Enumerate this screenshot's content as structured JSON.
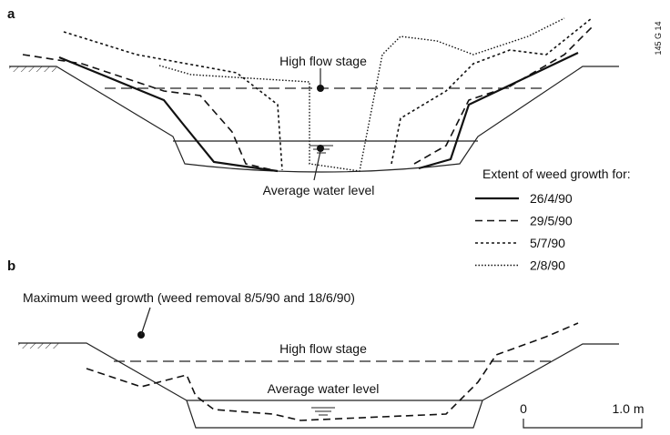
{
  "panel_a": {
    "label": "a",
    "high_flow": "High flow stage",
    "water_level": "Average water level"
  },
  "code": "145 G 14",
  "legend": {
    "title": "Extent of weed growth for:",
    "entries": [
      "26/4/90",
      "29/5/90",
      "5/7/90",
      "2/8/90"
    ]
  },
  "panel_b": {
    "label": "b",
    "annotation": "Maximum weed growth (weed removal 8/5/90 and 18/6/90)",
    "high_flow": "High flow stage",
    "water_level": "Average water level"
  },
  "scale": {
    "start": "0",
    "end": "1.0 m"
  }
}
